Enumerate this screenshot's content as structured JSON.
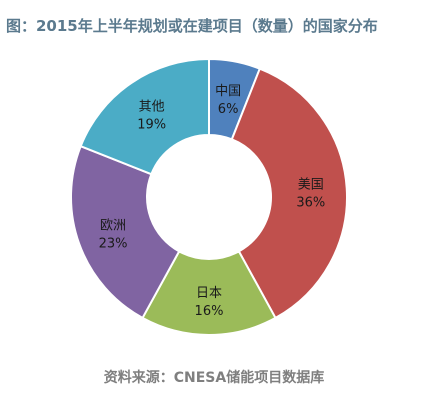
{
  "title": "图：2015年上半年规划或在建项目（数量）的国家分布",
  "source": "资料来源：CNESA储能项目数据库",
  "chart_data": {
    "type": "pie",
    "subtype": "donut",
    "categories": [
      "中国",
      "美国",
      "日本",
      "欧洲",
      "其他"
    ],
    "values": [
      6,
      36,
      16,
      23,
      19
    ],
    "value_labels": [
      "6%",
      "36%",
      "16%",
      "23%",
      "19%"
    ],
    "colors": [
      "#4f81bd",
      "#c0504d",
      "#9bbb59",
      "#8064a2",
      "#4bacc6"
    ]
  }
}
